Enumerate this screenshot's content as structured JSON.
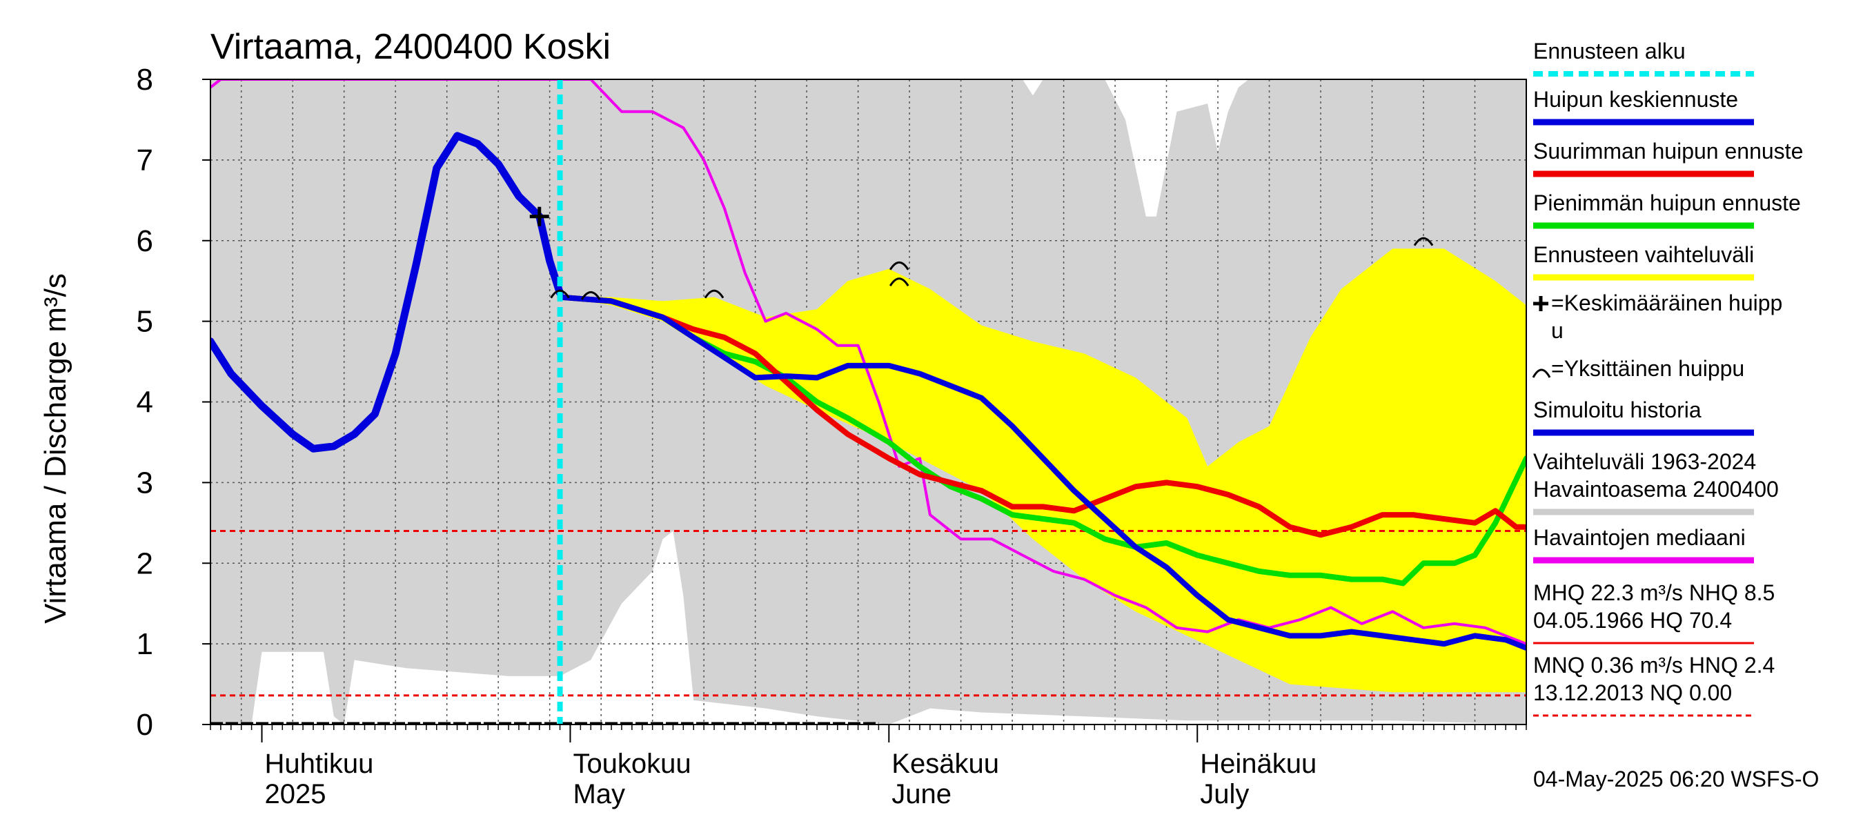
{
  "chart_data": {
    "type": "line",
    "title": "Virtaama, 2400400 Koski",
    "ylabel": "Virtaama / Discharge    m³/s",
    "ylim": [
      0,
      8
    ],
    "yticks": [
      0,
      1,
      2,
      3,
      4,
      5,
      6,
      7,
      8
    ],
    "xlim": [
      "2025-03-27",
      "2025-08-02"
    ],
    "months": [
      {
        "date": "2025-04-01",
        "fi": "Huhtikuu",
        "en": "2025"
      },
      {
        "date": "2025-05-01",
        "fi": "Toukokuu",
        "en": "May"
      },
      {
        "date": "2025-06-01",
        "fi": "Kesäkuu",
        "en": "June"
      },
      {
        "date": "2025-07-01",
        "fi": "Heinäkuu",
        "en": "July"
      }
    ],
    "forecast_start": "2025-04-30",
    "reference_lines": [
      {
        "name": "HNQ",
        "value": 2.4
      },
      {
        "name": "MNQ",
        "value": 0.36
      }
    ],
    "historical_range": {
      "lower": [
        [
          "2025-03-27",
          0
        ],
        [
          "2025-03-31",
          0
        ],
        [
          "2025-04-01",
          0.9
        ],
        [
          "2025-04-07",
          0.9
        ],
        [
          "2025-04-08",
          0.1
        ],
        [
          "2025-04-09",
          0.0
        ],
        [
          "2025-04-10",
          0.8
        ],
        [
          "2025-04-15",
          0.7
        ],
        [
          "2025-04-25",
          0.6
        ],
        [
          "2025-04-30",
          0.6
        ],
        [
          "2025-05-03",
          0.8
        ],
        [
          "2025-05-06",
          1.5
        ],
        [
          "2025-05-09",
          1.9
        ],
        [
          "2025-05-10",
          2.3
        ],
        [
          "2025-05-11",
          2.4
        ],
        [
          "2025-05-12",
          1.6
        ],
        [
          "2025-05-13",
          0.3
        ],
        [
          "2025-05-20",
          0.2
        ],
        [
          "2025-05-25",
          0.1
        ],
        [
          "2025-06-01",
          0.0
        ],
        [
          "2025-06-05",
          0.2
        ],
        [
          "2025-06-10",
          0.15
        ],
        [
          "2025-06-20",
          0.1
        ],
        [
          "2025-06-30",
          0.05
        ],
        [
          "2025-07-10",
          0.05
        ],
        [
          "2025-07-20",
          0.05
        ],
        [
          "2025-08-02",
          0.0
        ]
      ],
      "upper": [
        [
          "2025-03-27",
          8
        ],
        [
          "2025-06-14",
          8
        ],
        [
          "2025-06-15",
          7.8
        ],
        [
          "2025-06-16",
          8
        ],
        [
          "2025-06-22",
          8
        ],
        [
          "2025-06-24",
          7.5
        ],
        [
          "2025-06-26",
          6.3
        ],
        [
          "2025-06-27",
          6.3
        ],
        [
          "2025-06-29",
          7.6
        ],
        [
          "2025-07-02",
          7.7
        ],
        [
          "2025-07-03",
          7.1
        ],
        [
          "2025-07-04",
          7.6
        ],
        [
          "2025-07-05",
          7.9
        ],
        [
          "2025-07-06",
          8
        ],
        [
          "2025-08-02",
          8
        ]
      ]
    },
    "forecast_range": {
      "upper": [
        [
          "2025-04-30",
          5.3
        ],
        [
          "2025-05-05",
          5.3
        ],
        [
          "2025-05-10",
          5.25
        ],
        [
          "2025-05-15",
          5.3
        ],
        [
          "2025-05-20",
          5.05
        ],
        [
          "2025-05-25",
          5.15
        ],
        [
          "2025-05-28",
          5.5
        ],
        [
          "2025-06-01",
          5.65
        ],
        [
          "2025-06-05",
          5.4
        ],
        [
          "2025-06-10",
          4.95
        ],
        [
          "2025-06-15",
          4.75
        ],
        [
          "2025-06-20",
          4.6
        ],
        [
          "2025-06-25",
          4.3
        ],
        [
          "2025-06-30",
          3.8
        ],
        [
          "2025-07-02",
          3.2
        ],
        [
          "2025-07-05",
          3.5
        ],
        [
          "2025-07-08",
          3.7
        ],
        [
          "2025-07-12",
          4.8
        ],
        [
          "2025-07-15",
          5.4
        ],
        [
          "2025-07-20",
          5.9
        ],
        [
          "2025-07-25",
          5.9
        ],
        [
          "2025-07-30",
          5.5
        ],
        [
          "2025-08-02",
          5.2
        ]
      ],
      "lower": [
        [
          "2025-04-30",
          5.3
        ],
        [
          "2025-05-05",
          5.2
        ],
        [
          "2025-05-10",
          5.0
        ],
        [
          "2025-05-15",
          4.6
        ],
        [
          "2025-05-20",
          4.2
        ],
        [
          "2025-05-25",
          3.9
        ],
        [
          "2025-06-01",
          3.5
        ],
        [
          "2025-06-10",
          2.9
        ],
        [
          "2025-06-15",
          2.3
        ],
        [
          "2025-06-20",
          1.8
        ],
        [
          "2025-06-25",
          1.4
        ],
        [
          "2025-06-30",
          1.1
        ],
        [
          "2025-07-05",
          0.8
        ],
        [
          "2025-07-10",
          0.5
        ],
        [
          "2025-07-20",
          0.4
        ],
        [
          "2025-08-02",
          0.4
        ]
      ]
    },
    "series": [
      {
        "name": "Simuloitu historia",
        "color": "#0000dd",
        "width": 11,
        "points": [
          [
            "2025-03-27",
            4.75
          ],
          [
            "2025-03-29",
            4.35
          ],
          [
            "2025-04-01",
            3.95
          ],
          [
            "2025-04-04",
            3.6
          ],
          [
            "2025-04-06",
            3.42
          ],
          [
            "2025-04-08",
            3.45
          ],
          [
            "2025-04-10",
            3.6
          ],
          [
            "2025-04-12",
            3.85
          ],
          [
            "2025-04-14",
            4.6
          ],
          [
            "2025-04-16",
            5.7
          ],
          [
            "2025-04-18",
            6.9
          ],
          [
            "2025-04-20",
            7.3
          ],
          [
            "2025-04-22",
            7.2
          ],
          [
            "2025-04-24",
            6.95
          ],
          [
            "2025-04-26",
            6.55
          ],
          [
            "2025-04-28",
            6.3
          ],
          [
            "2025-04-29",
            5.75
          ],
          [
            "2025-04-30",
            5.35
          ]
        ]
      },
      {
        "name": "Huipun keskiennuste",
        "color": "#0000dd",
        "width": 8,
        "points": [
          [
            "2025-04-30",
            5.3
          ],
          [
            "2025-05-05",
            5.25
          ],
          [
            "2025-05-10",
            5.05
          ],
          [
            "2025-05-13",
            4.8
          ],
          [
            "2025-05-16",
            4.55
          ],
          [
            "2025-05-19",
            4.3
          ],
          [
            "2025-05-22",
            4.32
          ],
          [
            "2025-05-25",
            4.3
          ],
          [
            "2025-05-28",
            4.45
          ],
          [
            "2025-06-01",
            4.45
          ],
          [
            "2025-06-04",
            4.35
          ],
          [
            "2025-06-07",
            4.2
          ],
          [
            "2025-06-10",
            4.05
          ],
          [
            "2025-06-13",
            3.7
          ],
          [
            "2025-06-16",
            3.3
          ],
          [
            "2025-06-19",
            2.9
          ],
          [
            "2025-06-22",
            2.55
          ],
          [
            "2025-06-25",
            2.2
          ],
          [
            "2025-06-28",
            1.95
          ],
          [
            "2025-07-01",
            1.6
          ],
          [
            "2025-07-04",
            1.3
          ],
          [
            "2025-07-07",
            1.2
          ],
          [
            "2025-07-10",
            1.1
          ],
          [
            "2025-07-13",
            1.1
          ],
          [
            "2025-07-16",
            1.15
          ],
          [
            "2025-07-19",
            1.1
          ],
          [
            "2025-07-22",
            1.05
          ],
          [
            "2025-07-25",
            1.0
          ],
          [
            "2025-07-28",
            1.1
          ],
          [
            "2025-07-31",
            1.05
          ],
          [
            "2025-08-02",
            0.95
          ]
        ]
      },
      {
        "name": "Suurimman huipun ennuste",
        "color": "#ee0000",
        "width": 8,
        "points": [
          [
            "2025-04-30",
            5.3
          ],
          [
            "2025-05-05",
            5.25
          ],
          [
            "2025-05-10",
            5.05
          ],
          [
            "2025-05-13",
            4.9
          ],
          [
            "2025-05-16",
            4.8
          ],
          [
            "2025-05-19",
            4.6
          ],
          [
            "2025-05-22",
            4.25
          ],
          [
            "2025-05-25",
            3.9
          ],
          [
            "2025-05-28",
            3.6
          ],
          [
            "2025-06-01",
            3.3
          ],
          [
            "2025-06-04",
            3.1
          ],
          [
            "2025-06-07",
            3.0
          ],
          [
            "2025-06-10",
            2.9
          ],
          [
            "2025-06-13",
            2.7
          ],
          [
            "2025-06-16",
            2.7
          ],
          [
            "2025-06-19",
            2.65
          ],
          [
            "2025-06-22",
            2.8
          ],
          [
            "2025-06-25",
            2.95
          ],
          [
            "2025-06-28",
            3.0
          ],
          [
            "2025-07-01",
            2.95
          ],
          [
            "2025-07-04",
            2.85
          ],
          [
            "2025-07-07",
            2.7
          ],
          [
            "2025-07-10",
            2.45
          ],
          [
            "2025-07-13",
            2.35
          ],
          [
            "2025-07-16",
            2.45
          ],
          [
            "2025-07-19",
            2.6
          ],
          [
            "2025-07-22",
            2.6
          ],
          [
            "2025-07-25",
            2.55
          ],
          [
            "2025-07-28",
            2.5
          ],
          [
            "2025-07-30",
            2.65
          ],
          [
            "2025-08-01",
            2.45
          ],
          [
            "2025-08-02",
            2.45
          ]
        ]
      },
      {
        "name": "Pienimmän huipun ennuste",
        "color": "#00dd00",
        "width": 8,
        "points": [
          [
            "2025-04-30",
            5.3
          ],
          [
            "2025-05-05",
            5.25
          ],
          [
            "2025-05-10",
            5.05
          ],
          [
            "2025-05-13",
            4.8
          ],
          [
            "2025-05-16",
            4.6
          ],
          [
            "2025-05-19",
            4.5
          ],
          [
            "2025-05-22",
            4.3
          ],
          [
            "2025-05-25",
            4.0
          ],
          [
            "2025-05-28",
            3.8
          ],
          [
            "2025-06-01",
            3.5
          ],
          [
            "2025-06-04",
            3.2
          ],
          [
            "2025-06-07",
            2.95
          ],
          [
            "2025-06-10",
            2.8
          ],
          [
            "2025-06-13",
            2.6
          ],
          [
            "2025-06-16",
            2.55
          ],
          [
            "2025-06-19",
            2.5
          ],
          [
            "2025-06-22",
            2.3
          ],
          [
            "2025-06-25",
            2.2
          ],
          [
            "2025-06-28",
            2.25
          ],
          [
            "2025-07-01",
            2.1
          ],
          [
            "2025-07-04",
            2.0
          ],
          [
            "2025-07-07",
            1.9
          ],
          [
            "2025-07-10",
            1.85
          ],
          [
            "2025-07-13",
            1.85
          ],
          [
            "2025-07-16",
            1.8
          ],
          [
            "2025-07-19",
            1.8
          ],
          [
            "2025-07-21",
            1.75
          ],
          [
            "2025-07-23",
            2.0
          ],
          [
            "2025-07-26",
            2.0
          ],
          [
            "2025-07-28",
            2.1
          ],
          [
            "2025-07-30",
            2.5
          ],
          [
            "2025-08-02",
            3.3
          ]
        ]
      },
      {
        "name": "Havaintojen mediaani",
        "color": "#ee00ee",
        "width": 4,
        "points": [
          [
            "2025-03-27",
            7.9
          ],
          [
            "2025-03-28",
            8.0
          ],
          [
            "2025-05-03",
            8.0
          ],
          [
            "2025-05-06",
            7.6
          ],
          [
            "2025-05-09",
            7.6
          ],
          [
            "2025-05-12",
            7.4
          ],
          [
            "2025-05-14",
            7.0
          ],
          [
            "2025-05-16",
            6.4
          ],
          [
            "2025-05-18",
            5.6
          ],
          [
            "2025-05-20",
            5.0
          ],
          [
            "2025-05-22",
            5.1
          ],
          [
            "2025-05-25",
            4.9
          ],
          [
            "2025-05-27",
            4.7
          ],
          [
            "2025-05-29",
            4.7
          ],
          [
            "2025-05-31",
            4.0
          ],
          [
            "2025-06-02",
            3.2
          ],
          [
            "2025-06-04",
            3.3
          ],
          [
            "2025-06-05",
            2.6
          ],
          [
            "2025-06-08",
            2.3
          ],
          [
            "2025-06-11",
            2.3
          ],
          [
            "2025-06-14",
            2.1
          ],
          [
            "2025-06-17",
            1.9
          ],
          [
            "2025-06-20",
            1.8
          ],
          [
            "2025-06-23",
            1.6
          ],
          [
            "2025-06-26",
            1.45
          ],
          [
            "2025-06-29",
            1.2
          ],
          [
            "2025-07-02",
            1.15
          ],
          [
            "2025-07-05",
            1.3
          ],
          [
            "2025-07-08",
            1.2
          ],
          [
            "2025-07-11",
            1.3
          ],
          [
            "2025-07-14",
            1.45
          ],
          [
            "2025-07-17",
            1.25
          ],
          [
            "2025-07-20",
            1.4
          ],
          [
            "2025-07-23",
            1.2
          ],
          [
            "2025-07-26",
            1.25
          ],
          [
            "2025-07-29",
            1.2
          ],
          [
            "2025-08-02",
            1.0
          ]
        ]
      }
    ],
    "mean_peak": {
      "date": "2025-04-28",
      "value": 6.3
    },
    "single_peaks": [
      {
        "date": "2025-04-30",
        "value": 5.35
      },
      {
        "date": "2025-05-03",
        "value": 5.33
      },
      {
        "date": "2025-05-15",
        "value": 5.35
      },
      {
        "date": "2025-06-02",
        "value": 5.7
      },
      {
        "date": "2025-06-02",
        "value": 5.5
      },
      {
        "date": "2025-07-23",
        "value": 6.0
      }
    ]
  },
  "legend": {
    "items": [
      {
        "label": "Ennusteen alku",
        "color": "#00eeee",
        "style": "dashed"
      },
      {
        "label": "Huipun keskiennuste",
        "color": "#0000dd",
        "style": "solid"
      },
      {
        "label": "Suurimman huipun ennuste",
        "color": "#ee0000",
        "style": "solid"
      },
      {
        "label": "Pienimmän huipun ennuste",
        "color": "#00dd00",
        "style": "solid"
      },
      {
        "label": "Ennusteen vaihteluväli",
        "color": "#ffff00",
        "style": "solid"
      },
      {
        "label": "=Keskimääräinen huipp\nu",
        "color": "#000000",
        "style": "plus"
      },
      {
        "label": "=Yksittäinen huippu",
        "color": "#000000",
        "style": "arc"
      },
      {
        "label": "Simuloitu historia",
        "color": "#0000dd",
        "style": "solid"
      },
      {
        "label": "Vaihteluväli 1963-2024\n Havaintoasema 2400400",
        "color": "#cccccc",
        "style": "solid"
      },
      {
        "label": "Havaintojen mediaani",
        "color": "#ee00ee",
        "style": "solid"
      },
      {
        "label": "MHQ 22.3 m³/s NHQ  8.5\n04.05.1966 HQ 70.4",
        "color": "#ee0000",
        "style": "solid"
      },
      {
        "label": "MNQ 0.36 m³/s HNQ  2.4\n13.12.2013 NQ 0.00",
        "color": "#ee0000",
        "style": "dashed"
      }
    ]
  },
  "footer": "04-May-2025 06:20 WSFS-O"
}
